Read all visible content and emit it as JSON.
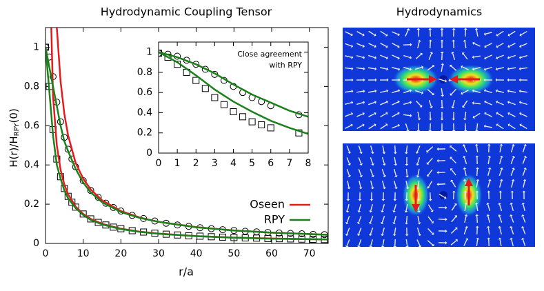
{
  "chart_data": [
    {
      "type": "line",
      "title": "Hydrodynamic Coupling Tensor",
      "xlabel": "r/a",
      "ylabel": [
        "H(r)/H",
        "RPY",
        "(0)"
      ],
      "xlim": [
        0,
        75
      ],
      "xticks": [
        0,
        10,
        20,
        30,
        40,
        50,
        60,
        70
      ],
      "ylim": [
        0,
        1.1
      ],
      "yticks": [
        0,
        0.2,
        0.4,
        0.6,
        0.8,
        1
      ],
      "legend": "right",
      "series": [
        {
          "color": "#000000",
          "marker": "circle",
          "x": [
            0,
            1,
            2,
            3,
            4,
            5,
            6,
            7,
            8,
            10,
            12,
            14,
            16,
            18,
            20,
            23,
            26,
            29,
            32,
            35,
            38,
            41,
            44,
            47,
            50,
            53,
            56,
            59,
            62,
            65,
            68,
            71,
            74
          ],
          "values": [
            1,
            0.95,
            0.85,
            0.72,
            0.62,
            0.54,
            0.48,
            0.43,
            0.39,
            0.32,
            0.27,
            0.235,
            0.205,
            0.183,
            0.165,
            0.143,
            0.127,
            0.114,
            0.103,
            0.094,
            0.087,
            0.08,
            0.075,
            0.07,
            0.066,
            0.062,
            0.059,
            0.056,
            0.053,
            0.051,
            0.049,
            0.046,
            0.045
          ]
        },
        {
          "color": "#000000",
          "marker": "square",
          "x": [
            0,
            1,
            2,
            3,
            4,
            5,
            6,
            7,
            8,
            10,
            12,
            14,
            16,
            18,
            20,
            23,
            26,
            29,
            32,
            35,
            38,
            41,
            44,
            47,
            50,
            53,
            56,
            59,
            62,
            65,
            68,
            71,
            74
          ],
          "values": [
            1,
            0.8,
            0.58,
            0.43,
            0.34,
            0.28,
            0.24,
            0.21,
            0.185,
            0.15,
            0.125,
            0.107,
            0.094,
            0.083,
            0.075,
            0.065,
            0.058,
            0.052,
            0.047,
            0.043,
            0.039,
            0.037,
            0.034,
            0.032,
            0.03,
            0.028,
            0.027,
            0.025,
            0.024,
            0.023,
            0.022,
            0.021,
            0.02
          ]
        },
        {
          "name": "Oseen",
          "color": "#e41a1c",
          "x": [
            0,
            1,
            2,
            3,
            4,
            5,
            6,
            8,
            10,
            12,
            15,
            20,
            25,
            30,
            40,
            50,
            60,
            75
          ],
          "values": [
            null,
            null,
            null,
            1.1,
            0.825,
            0.66,
            0.55,
            0.41,
            0.33,
            0.275,
            0.22,
            0.165,
            0.132,
            0.11,
            0.083,
            0.066,
            0.055,
            0.044
          ]
        },
        {
          "color": "#e41a1c",
          "x": [
            0,
            1,
            2,
            3,
            4,
            5,
            6,
            8,
            10,
            12,
            15,
            20,
            25,
            30,
            40,
            50,
            60,
            75
          ],
          "values": [
            null,
            1.5,
            0.75,
            0.5,
            0.375,
            0.3,
            0.25,
            0.1875,
            0.15,
            0.125,
            0.1,
            0.075,
            0.06,
            0.05,
            0.0375,
            0.03,
            0.025,
            0.02
          ]
        },
        {
          "name": "RPY",
          "color": "#1a801a",
          "x": [
            0,
            1,
            2,
            3,
            4,
            5,
            6,
            8,
            10,
            12,
            15,
            20,
            25,
            30,
            40,
            50,
            60,
            75
          ],
          "values": [
            1,
            0.9,
            0.8,
            0.7,
            0.6,
            0.52,
            0.47,
            0.38,
            0.31,
            0.26,
            0.21,
            0.16,
            0.13,
            0.11,
            0.082,
            0.066,
            0.055,
            0.044
          ]
        },
        {
          "color": "#1a801a",
          "x": [
            0,
            1,
            2,
            3,
            4,
            5,
            6,
            8,
            10,
            12,
            15,
            20,
            25,
            30,
            40,
            50,
            60,
            75
          ],
          "values": [
            1,
            0.78,
            0.55,
            0.4,
            0.33,
            0.27,
            0.23,
            0.18,
            0.145,
            0.12,
            0.097,
            0.073,
            0.059,
            0.049,
            0.037,
            0.029,
            0.024,
            0.02
          ]
        }
      ]
    },
    {
      "type": "line",
      "annotation": [
        "Close agreement",
        "with RPY"
      ],
      "xlim": [
        0,
        8
      ],
      "xticks": [
        0,
        1,
        2,
        3,
        4,
        5,
        6,
        7,
        8
      ],
      "ylim": [
        0,
        1.1
      ],
      "yticks": [
        0,
        0.2,
        0.4,
        0.6,
        0.8,
        1
      ],
      "series": [
        {
          "color": "#000000",
          "marker": "circle",
          "x": [
            0,
            0.5,
            1,
            1.5,
            2,
            2.5,
            3,
            3.5,
            4,
            4.5,
            5,
            5.5,
            6,
            7.5
          ],
          "values": [
            0.99,
            0.98,
            0.96,
            0.92,
            0.88,
            0.83,
            0.78,
            0.72,
            0.66,
            0.6,
            0.55,
            0.51,
            0.47,
            0.38
          ]
        },
        {
          "color": "#000000",
          "marker": "square",
          "x": [
            0,
            0.5,
            1,
            1.5,
            2,
            2.5,
            3,
            3.5,
            4,
            4.5,
            5,
            5.5,
            6,
            7.5
          ],
          "values": [
            0.99,
            0.95,
            0.88,
            0.8,
            0.72,
            0.64,
            0.55,
            0.48,
            0.41,
            0.36,
            0.31,
            0.28,
            0.25,
            0.2
          ]
        },
        {
          "color": "#1a801a",
          "x": [
            0,
            1,
            2,
            3,
            4,
            5,
            6,
            7,
            8
          ],
          "values": [
            1,
            0.95,
            0.88,
            0.79,
            0.68,
            0.58,
            0.5,
            0.42,
            0.36
          ]
        },
        {
          "color": "#1a801a",
          "x": [
            0,
            1,
            2,
            3,
            4,
            5,
            6,
            7,
            8
          ],
          "values": [
            1,
            0.9,
            0.77,
            0.63,
            0.51,
            0.41,
            0.32,
            0.25,
            0.19
          ]
        }
      ]
    }
  ],
  "panel": {
    "title": "Hydrodynamics"
  }
}
